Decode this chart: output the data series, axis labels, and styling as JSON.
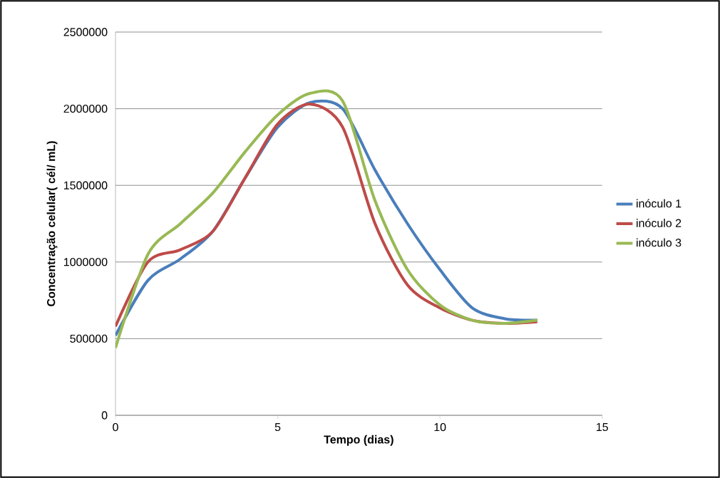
{
  "chart_data": {
    "type": "line",
    "xlabel": "Tempo (dias)",
    "ylabel": "Concentração celular( cél/ mL)",
    "x": [
      0,
      1,
      2,
      3,
      4,
      5,
      6,
      7,
      8,
      9,
      10,
      11,
      12,
      13
    ],
    "series": [
      {
        "name": "inóculo 1",
        "color": "#4a7ebb",
        "values": [
          520000,
          880000,
          1020000,
          1200000,
          1550000,
          1880000,
          2040000,
          2000000,
          1600000,
          1250000,
          950000,
          700000,
          630000,
          620000
        ]
      },
      {
        "name": "inóculo 2",
        "color": "#be4b48",
        "values": [
          580000,
          1000000,
          1080000,
          1200000,
          1550000,
          1900000,
          2030000,
          1880000,
          1250000,
          850000,
          700000,
          620000,
          600000,
          610000
        ]
      },
      {
        "name": "inóculo 3",
        "color": "#98b954",
        "values": [
          440000,
          1050000,
          1250000,
          1450000,
          1720000,
          1960000,
          2100000,
          2050000,
          1400000,
          950000,
          720000,
          620000,
          600000,
          620000
        ]
      }
    ],
    "xlim": [
      0,
      15
    ],
    "xticks": [
      0,
      5,
      10,
      15
    ],
    "ylim": [
      0,
      2500000
    ],
    "yticks": [
      0,
      500000,
      1000000,
      1500000,
      2000000,
      2500000
    ],
    "grid": "y",
    "legend": "right",
    "marker": "none",
    "line_style": "solid"
  }
}
